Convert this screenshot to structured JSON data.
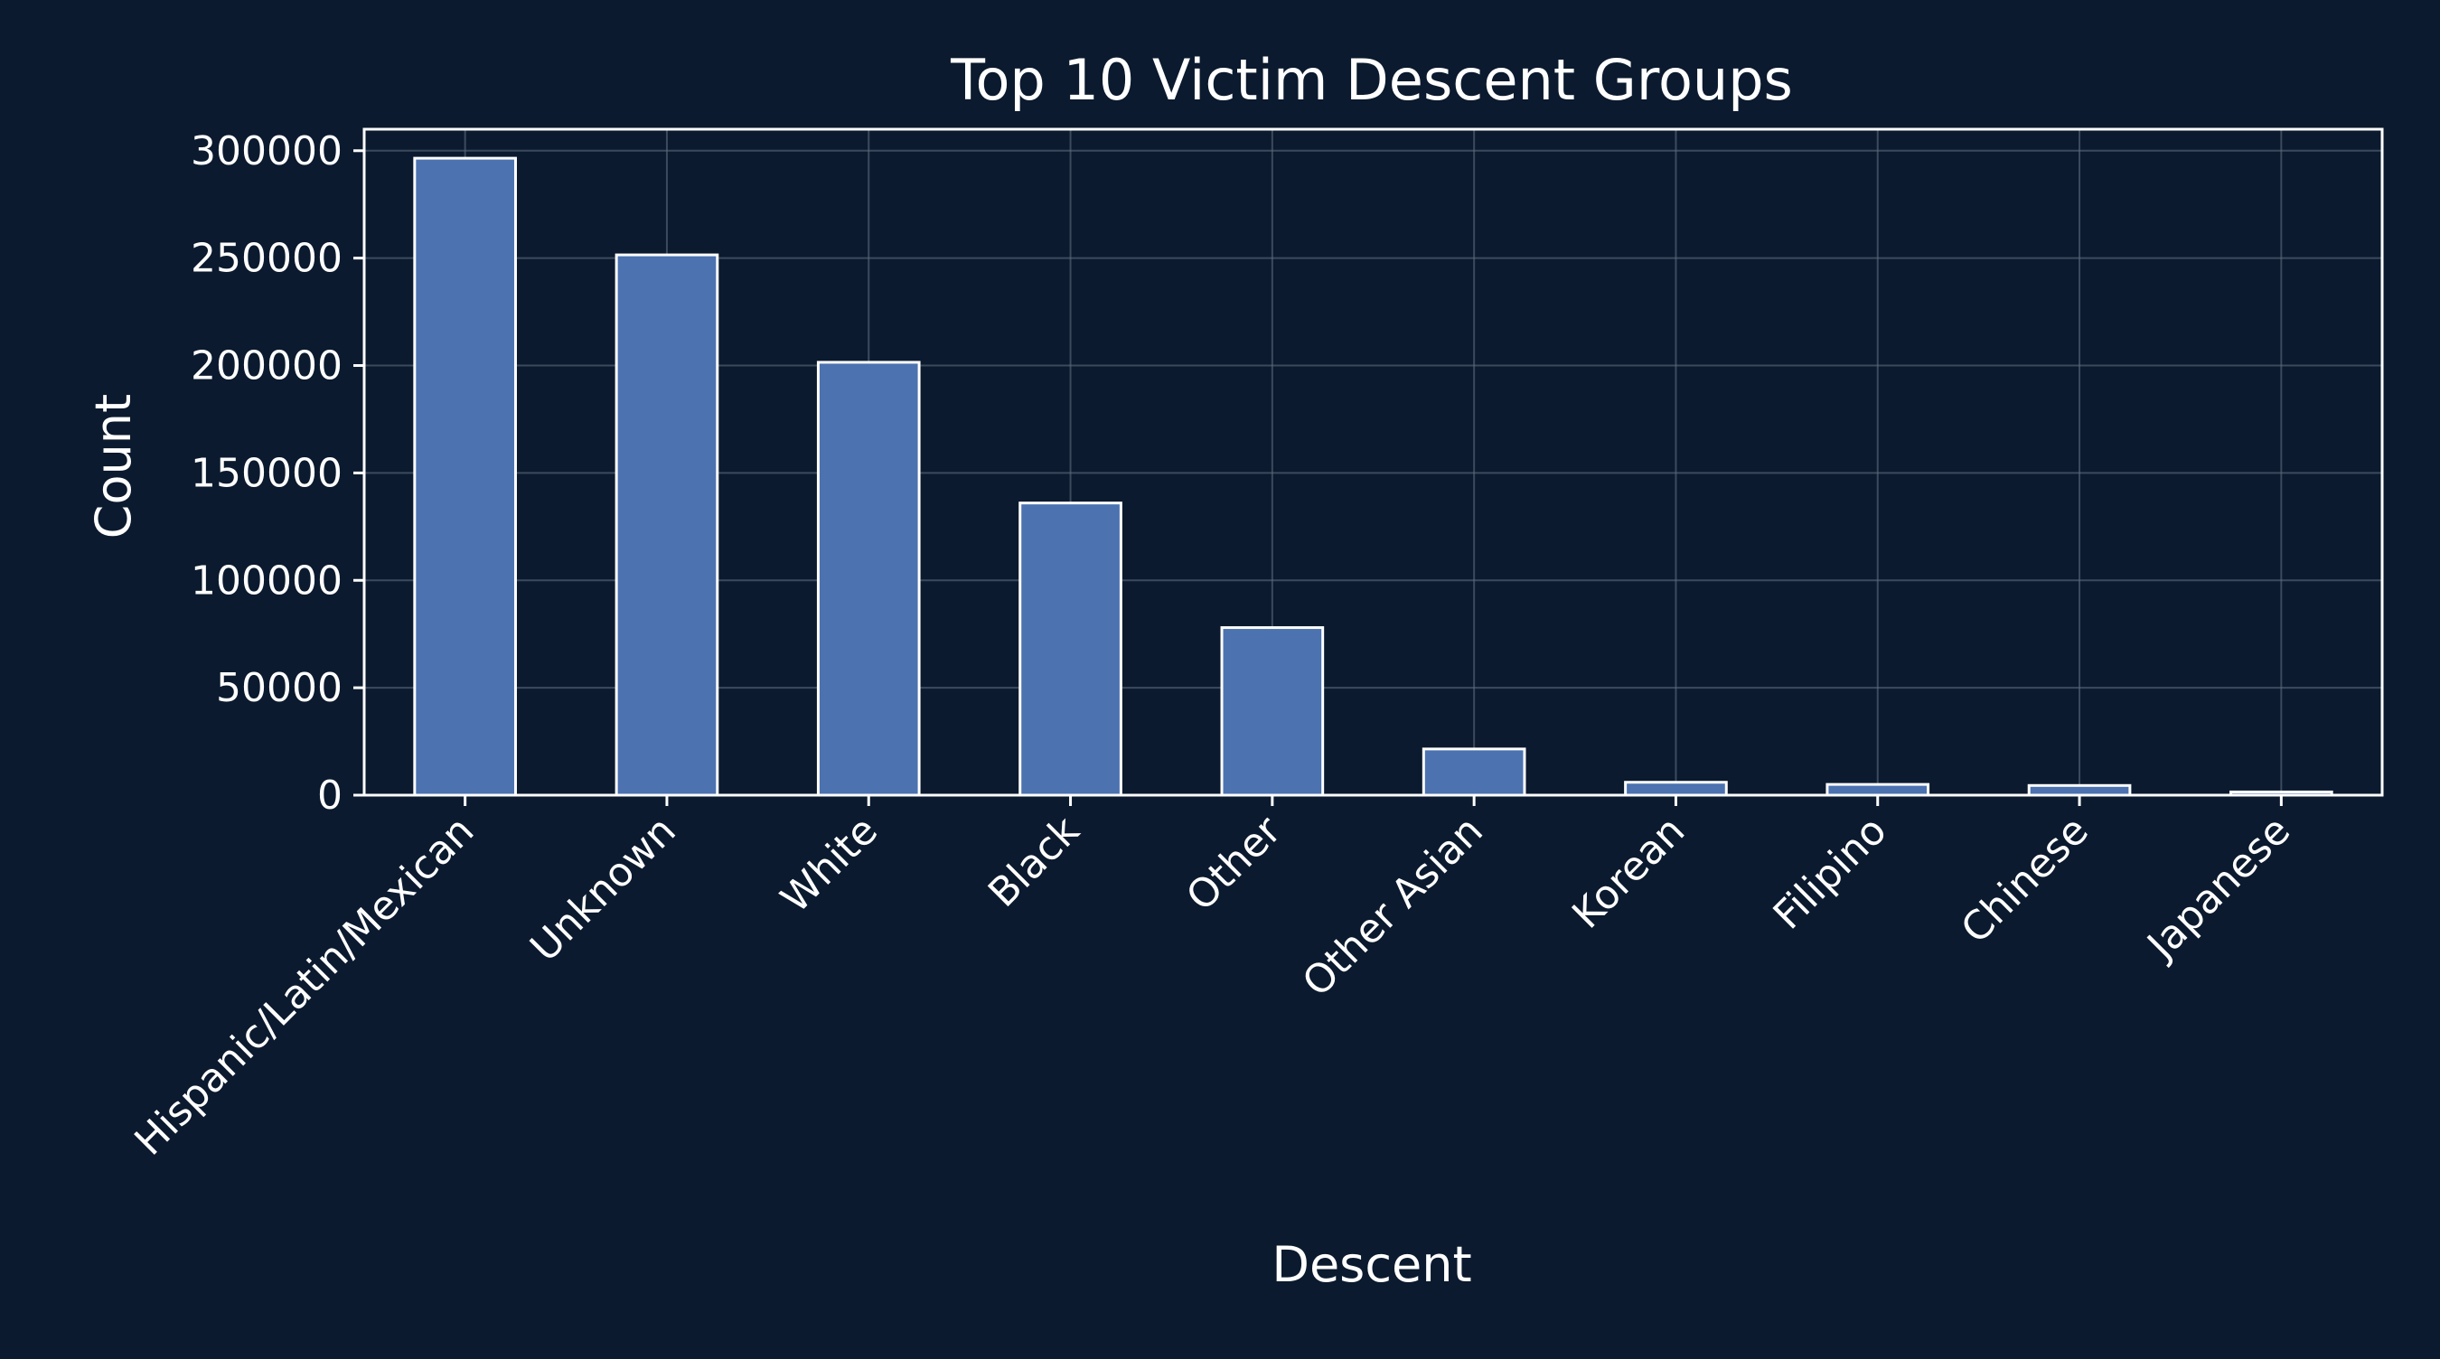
{
  "chart_data": {
    "type": "bar",
    "title": "Top 10 Victim Descent Groups",
    "xlabel": "Descent",
    "ylabel": "Count",
    "categories": [
      "Hispanic/Latin/Mexican",
      "Unknown",
      "White",
      "Black",
      "Other",
      "Other Asian",
      "Korean",
      "Filipino",
      "Chinese",
      "Japanese"
    ],
    "values": [
      296500,
      251500,
      201500,
      136000,
      78000,
      21500,
      6000,
      5000,
      4500,
      1500
    ],
    "ylim": [
      0,
      310000
    ],
    "yticks": [
      0,
      50000,
      100000,
      150000,
      200000,
      250000,
      300000
    ],
    "ytick_labels": [
      "0",
      "50000",
      "100000",
      "150000",
      "200000",
      "250000",
      "300000"
    ],
    "grid": true,
    "legend": "none"
  },
  "colors": {
    "background": "#0b1a2e",
    "bar_fill": "#4c72b0",
    "bar_edge": "#ffffff",
    "axis": "#ffffff",
    "grid": "#5d6b7e",
    "text": "#ffffff"
  }
}
